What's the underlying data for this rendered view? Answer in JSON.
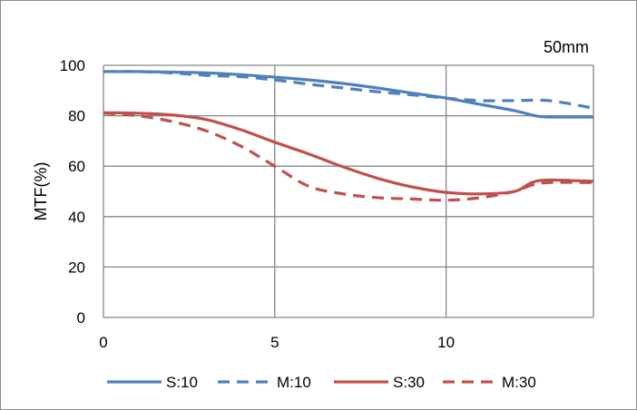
{
  "chart_data": {
    "type": "line",
    "title": "",
    "annotation": "50mm",
    "xlabel": "",
    "ylabel": "MTF(%)",
    "xlim": [
      0,
      14.3
    ],
    "ylim": [
      0,
      100
    ],
    "x_ticks": [
      0,
      5,
      10
    ],
    "y_ticks": [
      0,
      20,
      40,
      60,
      80,
      100
    ],
    "grid": true,
    "legend_position": "bottom",
    "series": [
      {
        "name": "S:10",
        "color": "#4f81bd",
        "dash": "solid",
        "points": [
          [
            0,
            97.5
          ],
          [
            1,
            97.5
          ],
          [
            2,
            97.3
          ],
          [
            3,
            97
          ],
          [
            4,
            96.3
          ],
          [
            5,
            95.3
          ],
          [
            6,
            94.2
          ],
          [
            7,
            92.8
          ],
          [
            8,
            91
          ],
          [
            9,
            89
          ],
          [
            10,
            87
          ],
          [
            11,
            84.5
          ],
          [
            12,
            82
          ],
          [
            12.6,
            80
          ],
          [
            13,
            79.5
          ],
          [
            14.3,
            79.5
          ]
        ]
      },
      {
        "name": "M:10",
        "color": "#4f81bd",
        "dash": "dashed",
        "points": [
          [
            0,
            97.5
          ],
          [
            1,
            97.5
          ],
          [
            2,
            97
          ],
          [
            3,
            96
          ],
          [
            4,
            95.5
          ],
          [
            5,
            94.2
          ],
          [
            6,
            92.5
          ],
          [
            7,
            91
          ],
          [
            8,
            89.5
          ],
          [
            9,
            88.3
          ],
          [
            10,
            87
          ],
          [
            11,
            86
          ],
          [
            12,
            86
          ],
          [
            13,
            86
          ],
          [
            14.3,
            83
          ]
        ]
      },
      {
        "name": "S:30",
        "color": "#c0504d",
        "dash": "solid",
        "points": [
          [
            0,
            81.2
          ],
          [
            1,
            81
          ],
          [
            2,
            80.3
          ],
          [
            3,
            78.5
          ],
          [
            4,
            74.5
          ],
          [
            5,
            69.5
          ],
          [
            6,
            64.8
          ],
          [
            7,
            59.7
          ],
          [
            8,
            55.2
          ],
          [
            9,
            51.8
          ],
          [
            10,
            49.6
          ],
          [
            11,
            49
          ],
          [
            12,
            50
          ],
          [
            12.5,
            53.5
          ],
          [
            13,
            54.5
          ],
          [
            14.3,
            54
          ]
        ]
      },
      {
        "name": "M:30",
        "color": "#c0504d",
        "dash": "dashed",
        "points": [
          [
            0,
            81
          ],
          [
            1,
            80
          ],
          [
            2,
            77.7
          ],
          [
            3,
            74
          ],
          [
            4,
            68
          ],
          [
            5,
            60
          ],
          [
            6,
            52
          ],
          [
            7,
            49
          ],
          [
            8,
            47.5
          ],
          [
            9,
            47
          ],
          [
            10,
            46.5
          ],
          [
            11,
            47.5
          ],
          [
            12,
            50
          ],
          [
            12.5,
            52.5
          ],
          [
            13,
            53.5
          ],
          [
            14.3,
            53.5
          ]
        ]
      }
    ]
  }
}
